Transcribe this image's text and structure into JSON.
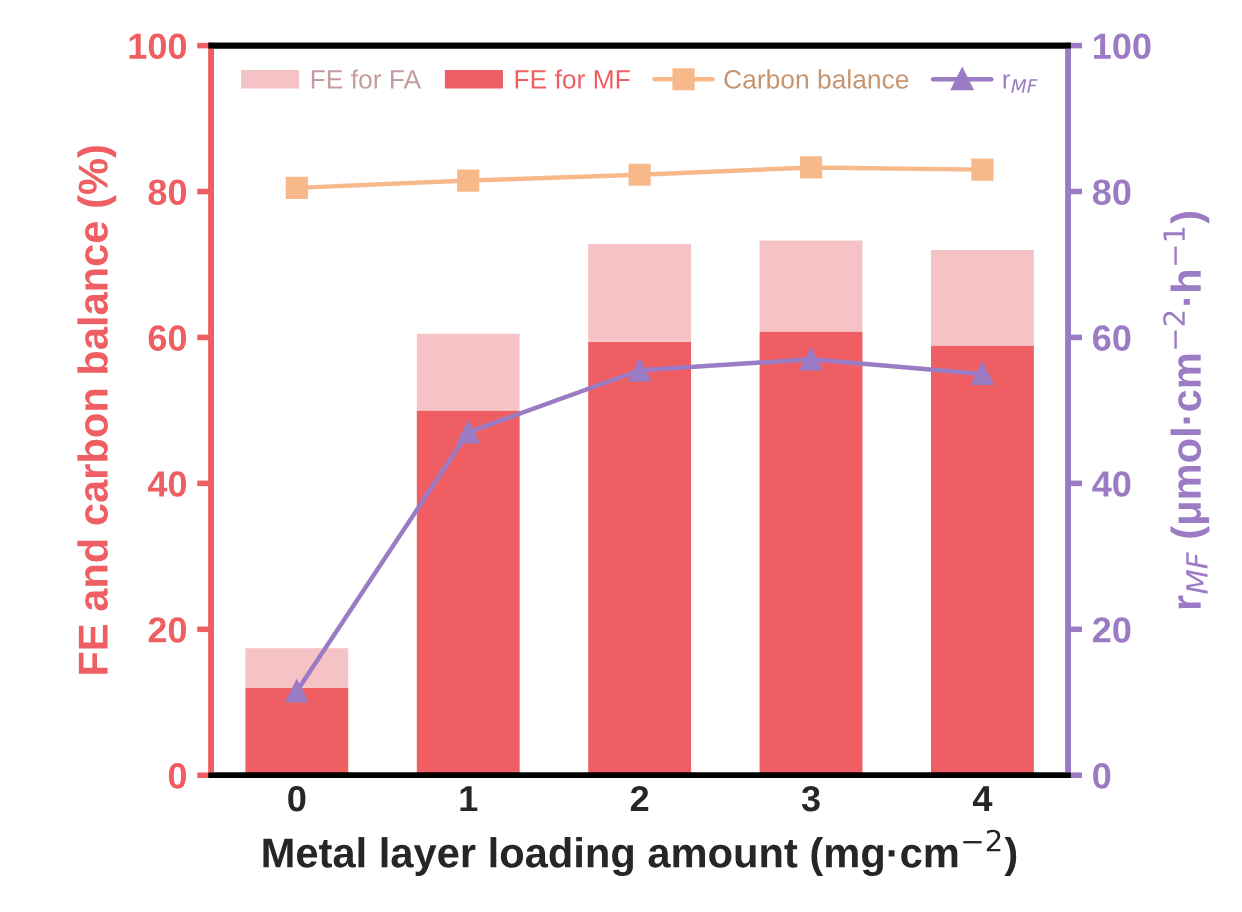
{
  "chart_data": {
    "type": "bar",
    "stacked": true,
    "categories": [
      "0",
      "1",
      "2",
      "3",
      "4"
    ],
    "xlabel": "Metal layer loading amount (mg·cm$^{−2}$)",
    "ylabel": "FE and carbon balance (%)",
    "y2label": "r$_{MF}$ (μmol·cm$^{−2}$·h$^{−1}$)",
    "ylim": [
      0,
      100
    ],
    "yticks": [
      0,
      20,
      40,
      60,
      80,
      100
    ],
    "y2lim": [
      0,
      100
    ],
    "y2ticks": [
      0,
      20,
      40,
      60,
      80,
      100
    ],
    "legend": "top",
    "grid": false,
    "series": [
      {
        "name": "FE for MF",
        "color": "#ee5e62",
        "values": [
          12,
          50,
          59.4,
          60.8,
          58.9
        ]
      },
      {
        "name": "FE for FA",
        "color": "#f5c3c5",
        "values": [
          5.4,
          10.5,
          13.4,
          12.5,
          13.1
        ]
      },
      {
        "name": "Carbon balance",
        "type": "line",
        "color": "#f7b98a",
        "marker": "square",
        "line_style": "solid",
        "values": [
          80.5,
          81.5,
          82.3,
          83.3,
          83
        ]
      },
      {
        "name": "r$_{MF}$",
        "type": "line",
        "axis": "y2",
        "color": "#9b7bc4",
        "marker": "triangle",
        "line_style": "solid",
        "values": [
          11.5,
          47,
          55.5,
          57,
          55
        ]
      }
    ]
  }
}
